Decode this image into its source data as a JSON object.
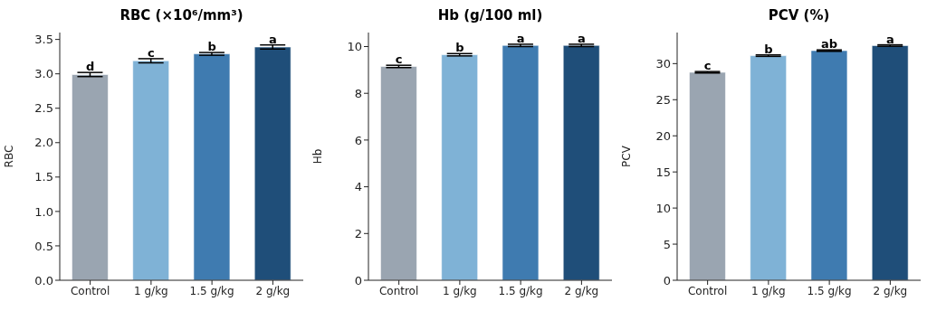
{
  "chart_data": [
    {
      "type": "bar",
      "title": "RBC (×10⁶/mm³)",
      "ylabel": "RBC",
      "categories": [
        "Control",
        "1 g/kg",
        "1.5 g/kg",
        "2 g/kg"
      ],
      "values": [
        2.99,
        3.19,
        3.29,
        3.39
      ],
      "errors": [
        0.03,
        0.03,
        0.02,
        0.03
      ],
      "colors": [
        "#9aa5b1",
        "#7fb2d6",
        "#3f7bb0",
        "#1f4e79"
      ],
      "ylim": [
        0,
        3.6
      ],
      "yticks": [
        {
          "value": 0,
          "label": "0.0"
        },
        0.5,
        {
          "value": 1,
          "label": "1.0"
        },
        1.5,
        {
          "value": 2,
          "label": "2.0"
        },
        2.5,
        {
          "value": 3,
          "label": "3.0"
        },
        3.5
      ],
      "annotations": [
        {
          "text": "d",
          "x": "Control",
          "y": 3.02
        },
        {
          "text": "c",
          "x": "1 g/kg",
          "y": 3.22
        },
        {
          "text": "b",
          "x": "1.5 g/kg",
          "y": 3.31
        },
        {
          "text": "a",
          "x": "2 g/kg",
          "y": 3.42
        }
      ]
    },
    {
      "type": "bar",
      "title": "Hb (g/100 ml)",
      "ylabel": "Hb",
      "categories": [
        "Control",
        "1 g/kg",
        "1.5 g/kg",
        "2 g/kg"
      ],
      "values": [
        9.15,
        9.65,
        10.05,
        10.05
      ],
      "errors": [
        0.05,
        0.05,
        0.05,
        0.05
      ],
      "colors": [
        "#9aa5b1",
        "#7fb2d6",
        "#3f7bb0",
        "#1f4e79"
      ],
      "ylim": [
        0,
        10.6
      ],
      "yticks": [
        0,
        2,
        4,
        6,
        8,
        10
      ],
      "annotations": [
        {
          "text": "c",
          "x": "Control",
          "y": 9.2
        },
        {
          "text": "b",
          "x": "1 g/kg",
          "y": 9.7
        },
        {
          "text": "a",
          "x": "1.5 g/kg",
          "y": 10.1
        },
        {
          "text": "a",
          "x": "2 g/kg",
          "y": 10.1
        }
      ]
    },
    {
      "type": "bar",
      "title": "PCV (%)",
      "ylabel": "PCV",
      "categories": [
        "Control",
        "1 g/kg",
        "1.5 g/kg",
        "2 g/kg"
      ],
      "values": [
        28.8,
        31.1,
        31.8,
        32.5
      ],
      "errors": [
        0.1,
        0.1,
        0.1,
        0.1
      ],
      "colors": [
        "#9aa5b1",
        "#7fb2d6",
        "#3f7bb0",
        "#1f4e79"
      ],
      "ylim": [
        0,
        34.3
      ],
      "yticks": [
        0,
        5,
        10,
        15,
        20,
        25,
        30
      ],
      "annotations": [
        {
          "text": "c",
          "x": "Control",
          "y": 28.9
        },
        {
          "text": "b",
          "x": "1 g/kg",
          "y": 31.2
        },
        {
          "text": "ab",
          "x": "1.5 g/kg",
          "y": 31.9
        },
        {
          "text": "a",
          "x": "2 g/kg",
          "y": 32.6
        }
      ]
    }
  ]
}
